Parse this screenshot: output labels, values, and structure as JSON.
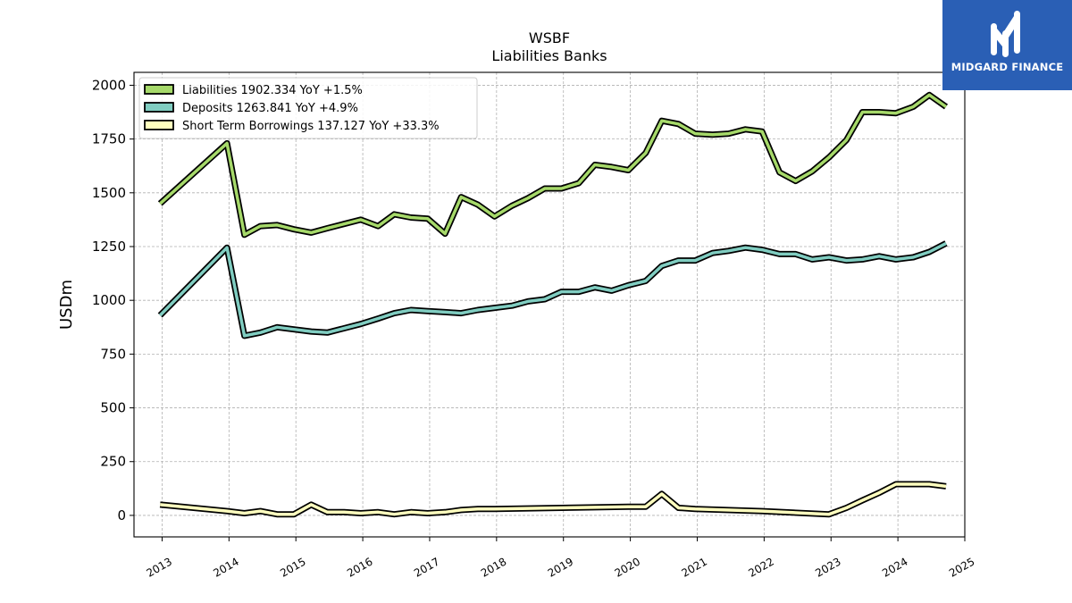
{
  "chart_data": {
    "type": "line",
    "title": "WSBF",
    "subtitle": "Liabilities Banks",
    "ylabel": "USDm",
    "xlabel": "",
    "xlim": [
      2012.58,
      2025.0
    ],
    "ylim": [
      -100,
      2060
    ],
    "x_ticks": [
      2013,
      2014,
      2015,
      2016,
      2017,
      2018,
      2019,
      2020,
      2021,
      2022,
      2023,
      2024,
      2025
    ],
    "y_ticks": [
      0,
      250,
      500,
      750,
      1000,
      1250,
      1500,
      1750,
      2000
    ],
    "grid": true,
    "legend_position": "top-left",
    "series": [
      {
        "name": "Liabilities",
        "legend": "Liabilities  1902.334 YoY +1.5%",
        "color": "#a6d96a",
        "points": [
          [
            2012.97,
            1450
          ],
          [
            2013.97,
            1730
          ],
          [
            2014.23,
            1305
          ],
          [
            2014.47,
            1345
          ],
          [
            2014.72,
            1350
          ],
          [
            2014.97,
            1330
          ],
          [
            2015.23,
            1315
          ],
          [
            2015.47,
            1335
          ],
          [
            2015.72,
            1355
          ],
          [
            2015.97,
            1375
          ],
          [
            2016.23,
            1345
          ],
          [
            2016.47,
            1400
          ],
          [
            2016.72,
            1385
          ],
          [
            2016.97,
            1380
          ],
          [
            2017.23,
            1310
          ],
          [
            2017.47,
            1480
          ],
          [
            2017.72,
            1445
          ],
          [
            2017.97,
            1390
          ],
          [
            2018.23,
            1440
          ],
          [
            2018.47,
            1475
          ],
          [
            2018.72,
            1520
          ],
          [
            2018.97,
            1520
          ],
          [
            2019.23,
            1545
          ],
          [
            2019.47,
            1630
          ],
          [
            2019.72,
            1620
          ],
          [
            2019.97,
            1605
          ],
          [
            2020.23,
            1685
          ],
          [
            2020.47,
            1835
          ],
          [
            2020.72,
            1820
          ],
          [
            2020.97,
            1775
          ],
          [
            2021.23,
            1770
          ],
          [
            2021.47,
            1775
          ],
          [
            2021.72,
            1795
          ],
          [
            2021.97,
            1785
          ],
          [
            2022.23,
            1595
          ],
          [
            2022.47,
            1555
          ],
          [
            2022.72,
            1600
          ],
          [
            2022.97,
            1665
          ],
          [
            2023.23,
            1745
          ],
          [
            2023.47,
            1875
          ],
          [
            2023.72,
            1875
          ],
          [
            2023.97,
            1870
          ],
          [
            2024.23,
            1900
          ],
          [
            2024.47,
            1955
          ],
          [
            2024.72,
            1900
          ]
        ]
      },
      {
        "name": "Deposits",
        "legend": "Deposits  1263.841 YoY +4.9%",
        "color": "#80cdc1",
        "points": [
          [
            2012.97,
            930
          ],
          [
            2013.97,
            1245
          ],
          [
            2014.23,
            835
          ],
          [
            2014.47,
            850
          ],
          [
            2014.72,
            875
          ],
          [
            2014.97,
            865
          ],
          [
            2015.23,
            855
          ],
          [
            2015.47,
            850
          ],
          [
            2015.72,
            870
          ],
          [
            2015.97,
            890
          ],
          [
            2016.23,
            915
          ],
          [
            2016.47,
            940
          ],
          [
            2016.72,
            955
          ],
          [
            2016.97,
            950
          ],
          [
            2017.23,
            945
          ],
          [
            2017.47,
            940
          ],
          [
            2017.72,
            955
          ],
          [
            2017.97,
            965
          ],
          [
            2018.23,
            975
          ],
          [
            2018.47,
            995
          ],
          [
            2018.72,
            1005
          ],
          [
            2018.97,
            1040
          ],
          [
            2019.23,
            1040
          ],
          [
            2019.47,
            1060
          ],
          [
            2019.72,
            1045
          ],
          [
            2019.97,
            1070
          ],
          [
            2020.23,
            1090
          ],
          [
            2020.47,
            1160
          ],
          [
            2020.72,
            1185
          ],
          [
            2020.97,
            1185
          ],
          [
            2021.23,
            1220
          ],
          [
            2021.47,
            1230
          ],
          [
            2021.72,
            1245
          ],
          [
            2021.97,
            1235
          ],
          [
            2022.23,
            1215
          ],
          [
            2022.47,
            1215
          ],
          [
            2022.72,
            1190
          ],
          [
            2022.97,
            1200
          ],
          [
            2023.23,
            1185
          ],
          [
            2023.47,
            1190
          ],
          [
            2023.72,
            1205
          ],
          [
            2023.97,
            1190
          ],
          [
            2024.23,
            1200
          ],
          [
            2024.47,
            1225
          ],
          [
            2024.72,
            1265
          ]
        ]
      },
      {
        "name": "Short Term Borrowings",
        "legend": "Short Term Borrowings  137.127 YoY +33.3%",
        "color": "#ffffbf",
        "points": [
          [
            2012.97,
            50
          ],
          [
            2013.97,
            20
          ],
          [
            2014.23,
            10
          ],
          [
            2014.47,
            20
          ],
          [
            2014.72,
            5
          ],
          [
            2014.97,
            5
          ],
          [
            2015.23,
            50
          ],
          [
            2015.47,
            15
          ],
          [
            2015.72,
            15
          ],
          [
            2015.97,
            10
          ],
          [
            2016.23,
            15
          ],
          [
            2016.47,
            5
          ],
          [
            2016.72,
            15
          ],
          [
            2016.97,
            10
          ],
          [
            2017.23,
            15
          ],
          [
            2017.47,
            25
          ],
          [
            2017.72,
            30
          ],
          [
            2017.97,
            30
          ],
          [
            2018.97,
            35
          ],
          [
            2019.97,
            40
          ],
          [
            2020.23,
            40
          ],
          [
            2020.47,
            100
          ],
          [
            2020.72,
            35
          ],
          [
            2020.97,
            30
          ],
          [
            2021.97,
            20
          ],
          [
            2022.97,
            5
          ],
          [
            2023.23,
            35
          ],
          [
            2023.47,
            70
          ],
          [
            2023.72,
            105
          ],
          [
            2023.97,
            145
          ],
          [
            2024.23,
            145
          ],
          [
            2024.47,
            145
          ],
          [
            2024.72,
            135
          ]
        ]
      }
    ]
  },
  "logo": {
    "text": "MIDGARD FINANCE",
    "icon": "midgard-logo-icon",
    "background": "#2a5fb5"
  }
}
